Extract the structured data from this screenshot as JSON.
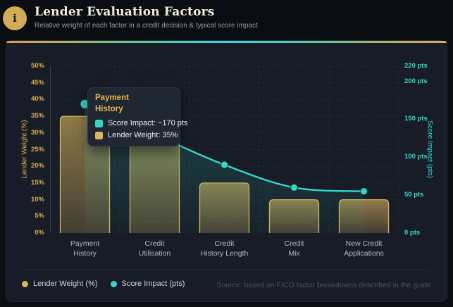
{
  "header": {
    "icon_glyph": "i",
    "title": "Lender Evaluation Factors",
    "subtitle": "Relative weight of each factor in a credit decision & typical score impact"
  },
  "chart_data": {
    "type": "combo",
    "categories": [
      "Payment History",
      "Credit Utilisation",
      "Credit History Length",
      "Credit Mix",
      "New Credit Applications"
    ],
    "category_label_lines": [
      [
        "Payment",
        "History"
      ],
      [
        "Credit",
        "Utilisation"
      ],
      [
        "Credit",
        "History Length"
      ],
      [
        "Credit",
        "Mix"
      ],
      [
        "New Credit",
        "Applications"
      ]
    ],
    "series": [
      {
        "name": "Lender Weight (%)",
        "type": "bar",
        "axis": "left",
        "values": [
          35,
          30,
          15,
          10,
          10
        ],
        "color": "#d9b45c"
      },
      {
        "name": "Score Impact (pts)",
        "type": "line",
        "axis": "right",
        "values": [
          170,
          130,
          90,
          60,
          55
        ],
        "color": "#35d8c7"
      }
    ],
    "left_axis": {
      "label": "Lender Weight (%)",
      "unit": "%",
      "min": 0,
      "max": 50,
      "step": 5
    },
    "right_axis": {
      "label": "Score Impact (pts)",
      "unit": " pts",
      "min": 0,
      "max": 220,
      "tick_values": [
        0,
        50,
        100,
        150,
        200,
        220
      ]
    },
    "grid": true,
    "legend_position": "bottom-left",
    "highlighted_category": "Payment History"
  },
  "tooltip": {
    "title_lines": [
      "Payment",
      "History"
    ],
    "rows": [
      {
        "swatch_color": "#35d8c7",
        "label": "Score Impact: ~170 pts"
      },
      {
        "swatch_color": "#dcb55e",
        "label": "Lender Weight: 35%"
      }
    ]
  },
  "legend": {
    "items": [
      {
        "label": "Lender Weight (%)",
        "color": "#ddb557"
      },
      {
        "label": "Score Impact (pts)",
        "color": "#35d8c7"
      }
    ]
  },
  "source_note": "Source: based on FICO factor breakdowns described in the guide",
  "colors": {
    "page_bg": "#0a0d12",
    "card_bg": "#171c26",
    "gold": "#d9b45c",
    "teal": "#35d8c7",
    "grid": "#242b39",
    "axis_line": "#39414f"
  }
}
